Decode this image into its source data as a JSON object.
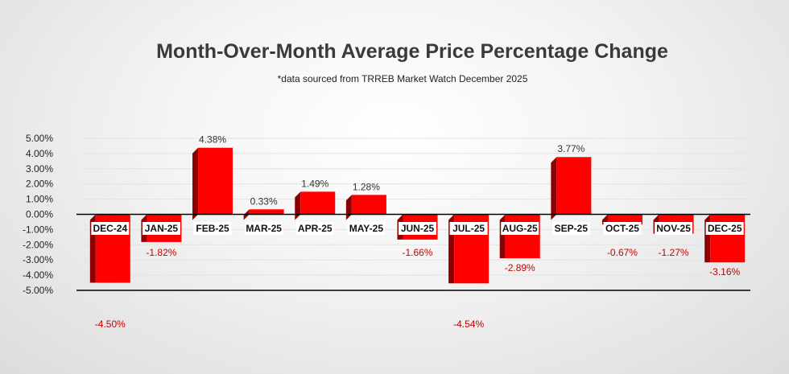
{
  "chart_data": {
    "type": "bar",
    "title": "Month-Over-Month Average Price Percentage Change",
    "subtitle": "*data sourced from TRREB Market Watch December 2025",
    "xlabel": "",
    "ylabel": "",
    "categories": [
      "DEC-24",
      "JAN-25",
      "FEB-25",
      "MAR-25",
      "APR-25",
      "MAY-25",
      "JUN-25",
      "JUL-25",
      "AUG-25",
      "SEP-25",
      "OCT-25",
      "NOV-25",
      "DEC-25"
    ],
    "values": [
      -4.5,
      -1.82,
      4.38,
      0.33,
      1.49,
      1.28,
      -1.66,
      -4.54,
      -2.89,
      3.77,
      -0.67,
      -1.27,
      -3.16
    ],
    "data_labels": [
      "-4.50%",
      "-1.82%",
      "4.38%",
      "0.33%",
      "1.49%",
      "1.28%",
      "-1.66%",
      "-4.54%",
      "-2.89%",
      "3.77%",
      "-0.67%",
      "-1.27%",
      "-3.16%"
    ],
    "ylim": [
      -5,
      5
    ],
    "yticks": [
      "5.00%",
      "4.00%",
      "3.00%",
      "2.00%",
      "1.00%",
      "0.00%",
      "-1.00%",
      "-2.00%",
      "-3.00%",
      "-4.00%",
      "-5.00%"
    ],
    "grid": true,
    "legend": "none",
    "colors": {
      "bar": "#ff0000",
      "bar_side": "#8b0000",
      "positive_label": "#333333",
      "negative_label": "#c00000",
      "title": "#3a3a3a"
    }
  }
}
